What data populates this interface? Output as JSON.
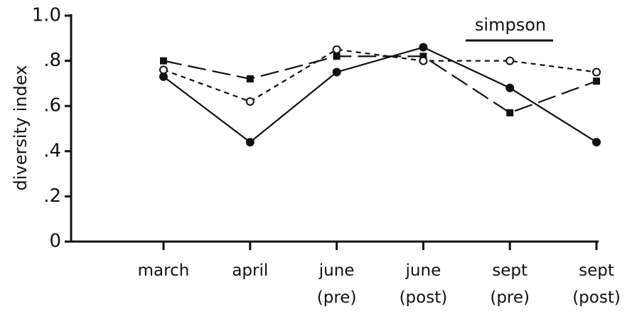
{
  "chart_data": {
    "type": "line",
    "title": "simpson",
    "y_label": "diversity index",
    "categories": [
      "march",
      "april",
      "june (pre)",
      "june (post)",
      "sept (pre)",
      "sept (post)"
    ],
    "series": [
      {
        "color": "#111111",
        "marker": "filled-circle",
        "dash": "solid",
        "values": [
          0.73,
          0.44,
          0.75,
          0.86,
          0.68,
          0.44
        ]
      },
      {
        "color": "#111111",
        "marker": "filled-square",
        "dash": "long",
        "values": [
          0.8,
          0.72,
          0.82,
          0.82,
          0.57,
          0.71
        ]
      },
      {
        "color": "#111111",
        "marker": "open-circle",
        "dash": "short",
        "values": [
          0.76,
          0.62,
          0.85,
          0.8,
          0.8,
          0.75
        ]
      }
    ],
    "ylim": [
      0,
      1
    ],
    "yticks": [
      0,
      {
        "value": 0.2,
        "label": ".2"
      },
      {
        "value": 0.4,
        "label": ".4"
      },
      {
        "value": 0.6,
        "label": ".6"
      },
      {
        "value": 0.8,
        "label": ".8"
      },
      {
        "value": 1,
        "label": "1.0"
      }
    ],
    "grid": false
  }
}
